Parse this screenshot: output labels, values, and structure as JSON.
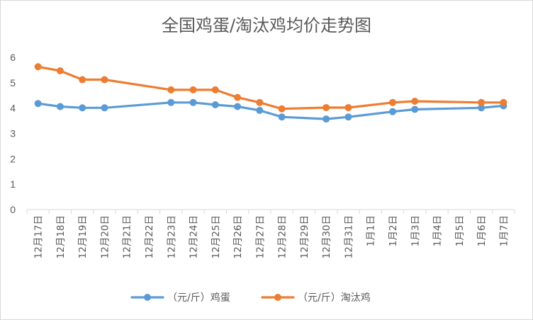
{
  "chart_data": {
    "type": "line",
    "title": "全国鸡蛋/淘汰鸡均价走势图",
    "xlabel": "",
    "ylabel": "",
    "ylim": [
      0,
      6
    ],
    "yticks": [
      "0",
      "1",
      "2",
      "3",
      "4",
      "5",
      "6"
    ],
    "grid": false,
    "legend_position": "bottom",
    "categories": [
      "12月17日",
      "12月18日",
      "12月19日",
      "12月20日",
      "12月21日",
      "12月22日",
      "12月23日",
      "12月24日",
      "12月25日",
      "12月26日",
      "12月27日",
      "12月28日",
      "12月29日",
      "12月30日",
      "12月31日",
      "1月1日",
      "1月2日",
      "1月3日",
      "1月4日",
      "1月5日",
      "1月6日",
      "1月7日"
    ],
    "series": [
      {
        "name": "（元/斤）鸡蛋",
        "color": "#5b9bd5",
        "values": [
          4.18,
          4.06,
          4.01,
          4.01,
          null,
          null,
          4.22,
          4.22,
          4.13,
          4.06,
          3.91,
          3.65,
          null,
          3.57,
          3.65,
          null,
          3.86,
          3.95,
          null,
          null,
          4.01,
          4.09
        ]
      },
      {
        "name": "（元/斤）淘汰鸡",
        "color": "#ed7d31",
        "values": [
          5.63,
          5.47,
          5.12,
          5.12,
          null,
          null,
          4.72,
          4.72,
          4.72,
          4.42,
          4.22,
          3.97,
          null,
          4.02,
          4.02,
          null,
          4.22,
          4.27,
          null,
          null,
          4.22,
          4.22
        ]
      }
    ]
  }
}
